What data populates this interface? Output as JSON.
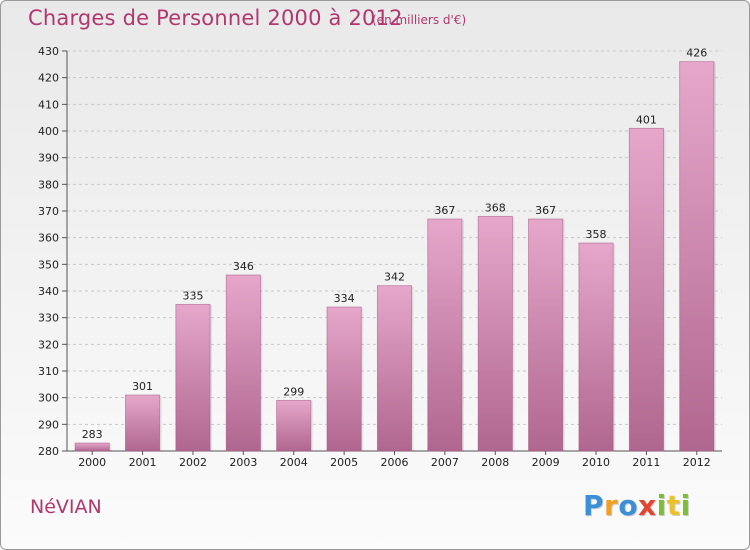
{
  "title": "Charges de Personnel 2000 à 2012",
  "subtitle": "(en milliers d'€)",
  "commune": "NéVIAN",
  "logo": {
    "letters": [
      "P",
      "r",
      "o",
      "x",
      "i",
      "t",
      "i"
    ],
    "colors": [
      "#3a8fd6",
      "#f0a023",
      "#3a8fd6",
      "#e2462f",
      "#7bbf34",
      "#e9c22c",
      "#7bbf34"
    ]
  },
  "colors": {
    "accent": "#b1386e",
    "bar_top": "#e6a7cb",
    "bar_bottom": "#b0678f"
  },
  "chart_data": {
    "type": "bar",
    "title": "Charges de Personnel 2000 à 2012",
    "subtitle": "(en milliers d'€)",
    "xlabel": "",
    "ylabel": "",
    "categories": [
      "2000",
      "2001",
      "2002",
      "2003",
      "2004",
      "2005",
      "2006",
      "2007",
      "2008",
      "2009",
      "2010",
      "2011",
      "2012"
    ],
    "values": [
      283,
      301,
      335,
      346,
      299,
      334,
      342,
      367,
      368,
      367,
      358,
      401,
      426
    ],
    "ylim": [
      280,
      430
    ],
    "yticks": [
      280,
      290,
      300,
      310,
      320,
      330,
      340,
      350,
      360,
      370,
      380,
      390,
      400,
      410,
      420,
      430
    ],
    "grid": true
  }
}
